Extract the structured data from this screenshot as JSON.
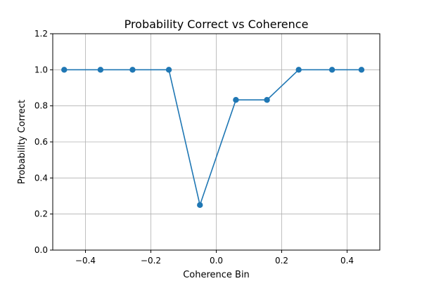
{
  "chart_data": {
    "type": "line",
    "title": "Probability Correct vs Coherence",
    "xlabel": "Coherence Bin",
    "ylabel": "Probability Correct",
    "xlim": [
      -0.5,
      0.5
    ],
    "ylim": [
      0.0,
      1.2
    ],
    "xticks": [
      -0.4,
      -0.2,
      0.0,
      0.2,
      0.4
    ],
    "xtick_labels": [
      "−0.4",
      "−0.2",
      "0.0",
      "0.2",
      "0.4"
    ],
    "yticks": [
      0.0,
      0.2,
      0.4,
      0.6,
      0.8,
      1.0,
      1.2
    ],
    "ytick_labels": [
      "0.0",
      "0.2",
      "0.4",
      "0.6",
      "0.8",
      "1.0",
      "1.2"
    ],
    "grid": true,
    "series": [
      {
        "color": "#1f77b4",
        "marker": "circle",
        "x": [
          -0.465,
          -0.354,
          -0.256,
          -0.145,
          -0.05,
          0.06,
          0.155,
          0.252,
          0.354,
          0.444
        ],
        "y": [
          1.0,
          1.0,
          1.0,
          1.0,
          0.25,
          0.833,
          0.833,
          1.0,
          1.0,
          1.0
        ]
      }
    ]
  }
}
